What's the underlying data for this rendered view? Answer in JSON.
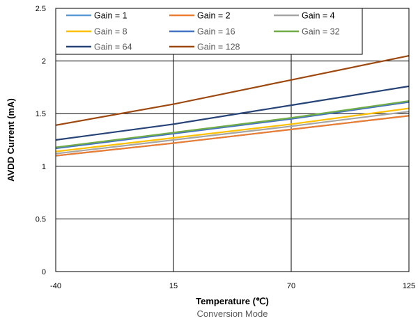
{
  "chart_data": {
    "type": "line",
    "title": "",
    "subtitle": "Conversion Mode",
    "xlabel": "Temperature (℃)",
    "ylabel": "AVDD Current (mA)",
    "x": [
      -40,
      15,
      70,
      125
    ],
    "x_tick_labels": [
      "-40",
      "15",
      "70",
      "125"
    ],
    "ylim": [
      0,
      2.5
    ],
    "y_ticks": [
      0,
      0.5,
      1,
      1.5,
      2,
      2.5
    ],
    "y_tick_labels": [
      "0",
      "0.5",
      "1",
      "1.5",
      "2",
      "2.5"
    ],
    "grid": true,
    "legend_position": "top",
    "series": [
      {
        "name": "Gain = 1",
        "color": "#5B9BD5",
        "values": [
          1.1,
          1.22,
          1.35,
          1.48
        ]
      },
      {
        "name": "Gain = 2",
        "color": "#ED7D31",
        "values": [
          1.1,
          1.22,
          1.35,
          1.48
        ]
      },
      {
        "name": "Gain = 4",
        "color": "#A5A5A5",
        "values": [
          1.12,
          1.25,
          1.38,
          1.52
        ]
      },
      {
        "name": "Gain = 8",
        "color": "#FFC000",
        "values": [
          1.14,
          1.27,
          1.4,
          1.55
        ]
      },
      {
        "name": "Gain = 16",
        "color": "#4472C4",
        "values": [
          1.17,
          1.31,
          1.45,
          1.61
        ]
      },
      {
        "name": "Gain = 32",
        "color": "#70AD47",
        "values": [
          1.18,
          1.32,
          1.46,
          1.62
        ]
      },
      {
        "name": "Gain = 64",
        "color": "#264478",
        "values": [
          1.25,
          1.4,
          1.58,
          1.76
        ]
      },
      {
        "name": "Gain = 128",
        "color": "#9E480E",
        "values": [
          1.39,
          1.59,
          1.82,
          2.05
        ]
      }
    ]
  }
}
